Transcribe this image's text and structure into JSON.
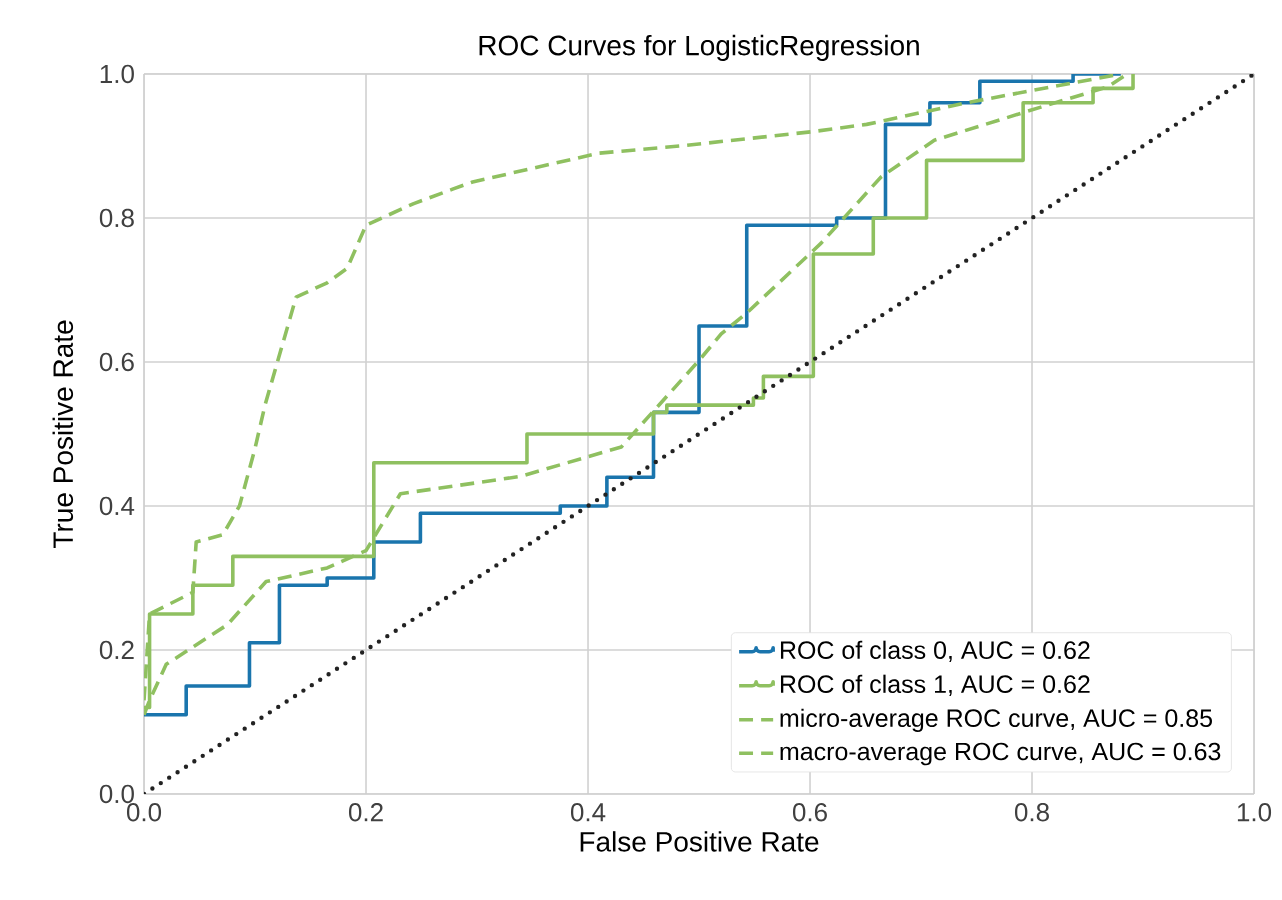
{
  "chart_data": {
    "type": "line",
    "title": "ROC Curves for LogisticRegression",
    "xlabel": "False Positive Rate",
    "ylabel": "True Positive Rate",
    "xlim": [
      0,
      1
    ],
    "ylim": [
      0,
      1
    ],
    "xticks": [
      {
        "value": 0,
        "label": "0.0"
      },
      0.2,
      0.4,
      0.6,
      0.8,
      {
        "value": 1,
        "label": "1.0"
      }
    ],
    "yticks": [
      {
        "value": 0,
        "label": "0.0"
      },
      0.2,
      0.4,
      0.6,
      0.8,
      {
        "value": 1,
        "label": "1.0"
      }
    ],
    "grid": true,
    "legend": "bottom right",
    "marker": "none",
    "series": [
      {
        "name": "ROC of class 0, AUC = 0.62",
        "type": "step",
        "color": "#1a75ad",
        "line_style": "solid",
        "x": [
          0,
          0.038,
          0.095,
          0.122,
          0.165,
          0.207,
          0.249,
          0.375,
          0.417,
          0.459,
          0.5,
          0.543,
          0.624,
          0.668,
          0.708,
          0.753,
          0.837,
          0.88
        ],
        "values": [
          0.11,
          0.15,
          0.21,
          0.29,
          0.3,
          0.35,
          0.39,
          0.4,
          0.44,
          0.53,
          0.65,
          0.79,
          0.8,
          0.93,
          0.96,
          0.99,
          1.0,
          1.0
        ]
      },
      {
        "name": "ROC of class 1, AUC = 0.62",
        "type": "step",
        "color": "#8fc060",
        "line_style": "solid",
        "x": [
          0,
          0.005,
          0.044,
          0.08,
          0.207,
          0.345,
          0.459,
          0.471,
          0.549,
          0.558,
          0.603,
          0.657,
          0.705,
          0.792,
          0.855,
          0.891
        ],
        "values": [
          0.12,
          0.25,
          0.29,
          0.33,
          0.46,
          0.5,
          0.53,
          0.54,
          0.55,
          0.58,
          0.75,
          0.8,
          0.88,
          0.96,
          0.98,
          1.0
        ]
      },
      {
        "name": "micro-average ROC curve, AUC = 0.85",
        "color": "#8fc060",
        "line_style": "dashed",
        "x": [
          0,
          0.005,
          0.044,
          0.047,
          0.071,
          0.086,
          0.1,
          0.109,
          0.137,
          0.165,
          0.183,
          0.2,
          0.243,
          0.278,
          0.296,
          0.41,
          0.483,
          0.603,
          0.651,
          0.741,
          0.88
        ],
        "values": [
          0.13,
          0.25,
          0.28,
          0.35,
          0.36,
          0.4,
          0.48,
          0.54,
          0.69,
          0.71,
          0.73,
          0.79,
          0.82,
          0.84,
          0.85,
          0.89,
          0.9,
          0.92,
          0.93,
          0.96,
          1.0
        ]
      },
      {
        "name": "macro-average ROC curve, AUC = 0.63",
        "color": "#8fc060",
        "line_style": "dashed",
        "x": [
          0,
          0.005,
          0.02,
          0.075,
          0.11,
          0.165,
          0.2,
          0.231,
          0.339,
          0.43,
          0.5,
          0.52,
          0.543,
          0.61,
          0.664,
          0.712,
          0.808,
          0.868,
          0.886
        ],
        "values": [
          0.11,
          0.13,
          0.18,
          0.235,
          0.295,
          0.314,
          0.338,
          0.417,
          0.441,
          0.482,
          0.602,
          0.639,
          0.668,
          0.765,
          0.857,
          0.908,
          0.954,
          0.982,
          1.0
        ]
      },
      {
        "color": "#222222",
        "line_style": "dotted",
        "x": [
          0,
          1
        ],
        "values": [
          0,
          1
        ]
      }
    ]
  }
}
